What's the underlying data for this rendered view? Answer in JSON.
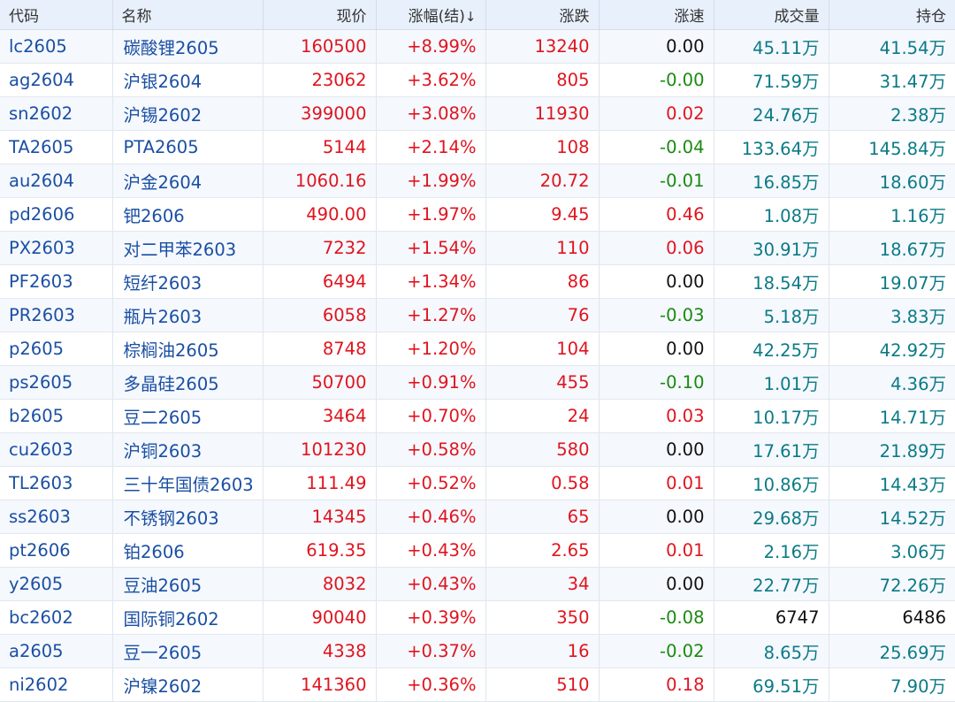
{
  "colors": {
    "up": "#e0141e",
    "down": "#1a8a0f",
    "flat": "#111111",
    "volume": "#0a7a86",
    "link": "#1a4fa3"
  },
  "table": {
    "headers": {
      "code": "代码",
      "name": "名称",
      "price": "现价",
      "change_pct": "涨幅(结)",
      "change_pct_sort_icon": "arrow-down-icon",
      "change_pct_sort_glyph": "↓",
      "change": "涨跌",
      "speed": "涨速",
      "volume": "成交量",
      "open_interest": "持仓"
    },
    "rows": [
      {
        "code": "lc2605",
        "name": "碳酸锂2605",
        "price": "160500",
        "change_pct": "+8.99%",
        "change": "13240",
        "speed": "0.00",
        "volume": "45.11万",
        "open_interest": "41.54万"
      },
      {
        "code": "ag2604",
        "name": "沪银2604",
        "price": "23062",
        "change_pct": "+3.62%",
        "change": "805",
        "speed": "-0.00",
        "volume": "71.59万",
        "open_interest": "31.47万"
      },
      {
        "code": "sn2602",
        "name": "沪锡2602",
        "price": "399000",
        "change_pct": "+3.08%",
        "change": "11930",
        "speed": "0.02",
        "volume": "24.76万",
        "open_interest": "2.38万"
      },
      {
        "code": "TA2605",
        "name": "PTA2605",
        "price": "5144",
        "change_pct": "+2.14%",
        "change": "108",
        "speed": "-0.04",
        "volume": "133.64万",
        "open_interest": "145.84万"
      },
      {
        "code": "au2604",
        "name": "沪金2604",
        "price": "1060.16",
        "change_pct": "+1.99%",
        "change": "20.72",
        "speed": "-0.01",
        "volume": "16.85万",
        "open_interest": "18.60万"
      },
      {
        "code": "pd2606",
        "name": "钯2606",
        "price": "490.00",
        "change_pct": "+1.97%",
        "change": "9.45",
        "speed": "0.46",
        "volume": "1.08万",
        "open_interest": "1.16万"
      },
      {
        "code": "PX2603",
        "name": "对二甲苯2603",
        "price": "7232",
        "change_pct": "+1.54%",
        "change": "110",
        "speed": "0.06",
        "volume": "30.91万",
        "open_interest": "18.67万"
      },
      {
        "code": "PF2603",
        "name": "短纤2603",
        "price": "6494",
        "change_pct": "+1.34%",
        "change": "86",
        "speed": "0.00",
        "volume": "18.54万",
        "open_interest": "19.07万"
      },
      {
        "code": "PR2603",
        "name": "瓶片2603",
        "price": "6058",
        "change_pct": "+1.27%",
        "change": "76",
        "speed": "-0.03",
        "volume": "5.18万",
        "open_interest": "3.83万"
      },
      {
        "code": "p2605",
        "name": "棕榈油2605",
        "price": "8748",
        "change_pct": "+1.20%",
        "change": "104",
        "speed": "0.00",
        "volume": "42.25万",
        "open_interest": "42.92万"
      },
      {
        "code": "ps2605",
        "name": "多晶硅2605",
        "price": "50700",
        "change_pct": "+0.91%",
        "change": "455",
        "speed": "-0.10",
        "volume": "1.01万",
        "open_interest": "4.36万"
      },
      {
        "code": "b2605",
        "name": "豆二2605",
        "price": "3464",
        "change_pct": "+0.70%",
        "change": "24",
        "speed": "0.03",
        "volume": "10.17万",
        "open_interest": "14.71万"
      },
      {
        "code": "cu2603",
        "name": "沪铜2603",
        "price": "101230",
        "change_pct": "+0.58%",
        "change": "580",
        "speed": "0.00",
        "volume": "17.61万",
        "open_interest": "21.89万"
      },
      {
        "code": "TL2603",
        "name": "三十年国债2603",
        "price": "111.49",
        "change_pct": "+0.52%",
        "change": "0.58",
        "speed": "0.01",
        "volume": "10.86万",
        "open_interest": "14.43万"
      },
      {
        "code": "ss2603",
        "name": "不锈钢2603",
        "price": "14345",
        "change_pct": "+0.46%",
        "change": "65",
        "speed": "0.00",
        "volume": "29.68万",
        "open_interest": "14.52万"
      },
      {
        "code": "pt2606",
        "name": "铂2606",
        "price": "619.35",
        "change_pct": "+0.43%",
        "change": "2.65",
        "speed": "0.01",
        "volume": "2.16万",
        "open_interest": "3.06万"
      },
      {
        "code": "y2605",
        "name": "豆油2605",
        "price": "8032",
        "change_pct": "+0.43%",
        "change": "34",
        "speed": "0.00",
        "volume": "22.77万",
        "open_interest": "72.26万"
      },
      {
        "code": "bc2602",
        "name": "国际铜2602",
        "price": "90040",
        "change_pct": "+0.39%",
        "change": "350",
        "speed": "-0.08",
        "volume": "6747",
        "open_interest": "6486"
      },
      {
        "code": "a2605",
        "name": "豆一2605",
        "price": "4338",
        "change_pct": "+0.37%",
        "change": "16",
        "speed": "-0.02",
        "volume": "8.65万",
        "open_interest": "25.69万"
      },
      {
        "code": "ni2602",
        "name": "沪镍2602",
        "price": "141360",
        "change_pct": "+0.36%",
        "change": "510",
        "speed": "0.18",
        "volume": "69.51万",
        "open_interest": "7.90万"
      }
    ]
  }
}
